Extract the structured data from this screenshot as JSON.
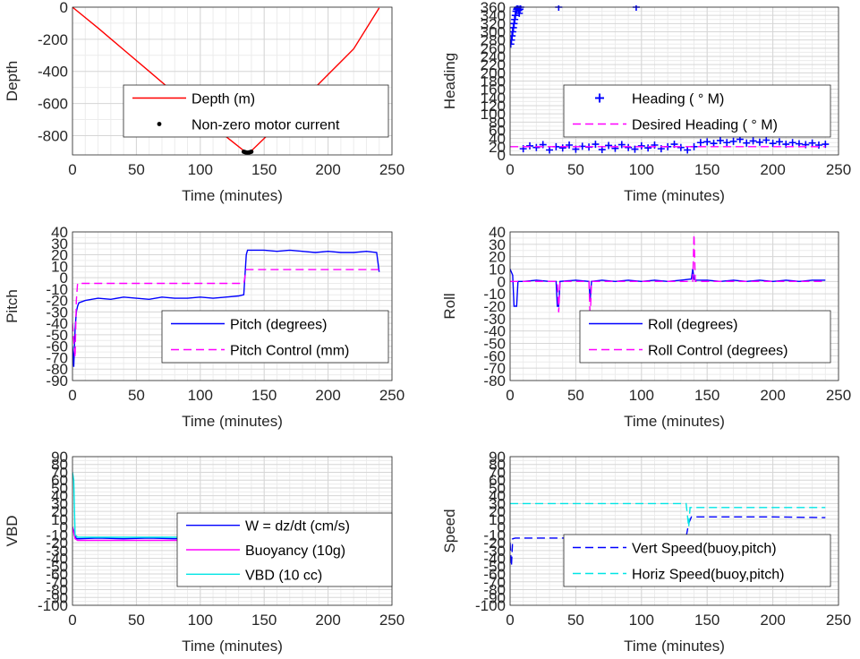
{
  "chart_data": [
    {
      "type": "line",
      "ylabel": "Depth",
      "xlabel": "Time (minutes)",
      "xlim": [
        0,
        250
      ],
      "ylim": [
        -920,
        0
      ],
      "xticks": [
        0,
        50,
        100,
        150,
        200,
        250
      ],
      "yticks": [
        0,
        -200,
        -400,
        -600,
        -800
      ],
      "grid": true,
      "legend": "center",
      "series": [
        {
          "name": "Depth (m)",
          "style": "line",
          "color": "#ff0000",
          "x": [
            0,
            20,
            40,
            60,
            80,
            100,
            120,
            135,
            138,
            140,
            160,
            180,
            200,
            220,
            240
          ],
          "y": [
            0,
            -130,
            -265,
            -400,
            -535,
            -670,
            -805,
            -900,
            -905,
            -895,
            -740,
            -580,
            -420,
            -260,
            -5
          ]
        },
        {
          "name": "Non-zero motor current",
          "style": "dot",
          "color": "#000000",
          "x": [
            134,
            135,
            136,
            137,
            138,
            139,
            140
          ],
          "y": [
            -900,
            -903,
            -905,
            -906,
            -905,
            -903,
            -900
          ]
        }
      ]
    },
    {
      "type": "line",
      "ylabel": "Heading",
      "xlabel": "Time (minutes)",
      "xlim": [
        0,
        250
      ],
      "ylim": [
        0,
        360
      ],
      "xticks": [
        0,
        50,
        100,
        150,
        200,
        250
      ],
      "yticks": [
        0,
        20,
        40,
        60,
        80,
        100,
        120,
        140,
        160,
        180,
        200,
        220,
        240,
        260,
        280,
        300,
        320,
        340,
        360
      ],
      "grid": true,
      "legend": "center-right",
      "series": [
        {
          "name": "Heading ( ° M)",
          "style": "plus",
          "color": "#0000ff",
          "x": [
            0.5,
            1,
            1.5,
            2,
            2.5,
            3,
            3.5,
            4,
            4.5,
            5,
            5.5,
            6,
            6.5,
            7,
            7.5,
            8,
            37,
            96,
            10,
            15,
            20,
            25,
            30,
            35,
            40,
            45,
            50,
            55,
            60,
            65,
            70,
            75,
            80,
            85,
            90,
            95,
            100,
            105,
            110,
            115,
            120,
            125,
            130,
            135,
            140,
            145,
            150,
            155,
            160,
            165,
            170,
            175,
            180,
            185,
            190,
            195,
            200,
            205,
            210,
            215,
            220,
            225,
            230,
            235,
            240
          ],
          "y": [
            270,
            280,
            290,
            300,
            310,
            320,
            330,
            340,
            350,
            355,
            358,
            360,
            352,
            345,
            355,
            360,
            360,
            360,
            15,
            22,
            18,
            25,
            12,
            20,
            17,
            24,
            14,
            21,
            19,
            26,
            13,
            23,
            16,
            25,
            18,
            14,
            22,
            17,
            24,
            15,
            20,
            26,
            18,
            12,
            20,
            30,
            32,
            28,
            35,
            30,
            33,
            38,
            29,
            34,
            31,
            36,
            28,
            32,
            26,
            30,
            27,
            25,
            29,
            24,
            26
          ]
        },
        {
          "name": "Desired Heading (  ° M)",
          "style": "dash",
          "color": "#ff00ff",
          "x": [
            0,
            240
          ],
          "y": [
            20,
            20
          ]
        }
      ]
    },
    {
      "type": "line",
      "ylabel": "Pitch",
      "xlabel": "Time (minutes)",
      "xlim": [
        0,
        250
      ],
      "ylim": [
        -90,
        40
      ],
      "xticks": [
        0,
        50,
        100,
        150,
        200,
        250
      ],
      "yticks": [
        40,
        30,
        20,
        10,
        0,
        -10,
        -20,
        -30,
        -40,
        -50,
        -60,
        -70,
        -80,
        -90
      ],
      "grid": true,
      "legend": "lower-center",
      "series": [
        {
          "name": "Pitch (degrees)",
          "style": "line",
          "color": "#0000ff",
          "x": [
            0,
            1,
            2,
            3,
            4,
            5,
            10,
            20,
            30,
            40,
            50,
            60,
            70,
            80,
            90,
            100,
            110,
            120,
            130,
            134,
            136,
            137,
            140,
            150,
            160,
            170,
            180,
            190,
            200,
            210,
            220,
            230,
            238,
            240
          ],
          "y": [
            -60,
            -78,
            -45,
            -30,
            -25,
            -22,
            -20,
            -18,
            -19,
            -17,
            -18,
            -19,
            -17,
            -18,
            -18,
            -17,
            -18,
            -17,
            -16,
            -15,
            20,
            24,
            24,
            24,
            23,
            24,
            23,
            22,
            23,
            22,
            22,
            23,
            22,
            5
          ]
        },
        {
          "name": "Pitch Control (mm)",
          "style": "dash",
          "color": "#ff00ff",
          "x": [
            0,
            2,
            3,
            4,
            134,
            136,
            240
          ],
          "y": [
            -40,
            -70,
            -20,
            -5,
            -5,
            7,
            7
          ]
        }
      ]
    },
    {
      "type": "line",
      "ylabel": "Roll",
      "xlabel": "Time (minutes)",
      "xlim": [
        0,
        250
      ],
      "ylim": [
        -80,
        40
      ],
      "xticks": [
        0,
        50,
        100,
        150,
        200,
        250
      ],
      "yticks": [
        40,
        30,
        20,
        10,
        0,
        -10,
        -20,
        -30,
        -40,
        -50,
        -60,
        -70,
        -80
      ],
      "grid": true,
      "legend": "lower-right",
      "series": [
        {
          "name": "Roll (degrees)",
          "style": "line",
          "color": "#0000ff",
          "x": [
            0,
            2,
            3,
            5,
            6,
            10,
            20,
            30,
            35,
            36,
            37,
            38,
            50,
            60,
            61,
            62,
            70,
            80,
            90,
            100,
            110,
            120,
            130,
            138,
            139,
            140,
            141,
            142,
            150,
            160,
            170,
            180,
            190,
            200,
            210,
            220,
            230,
            240
          ],
          "y": [
            10,
            5,
            -20,
            -20,
            0,
            0,
            1,
            0,
            0,
            -20,
            -20,
            0,
            1,
            0,
            -15,
            0,
            1,
            0,
            1,
            0,
            1,
            0,
            1,
            2,
            10,
            2,
            1,
            1,
            1,
            0,
            1,
            0,
            1,
            0,
            1,
            0,
            1,
            1
          ]
        },
        {
          "name": "Roll Control (degrees)",
          "style": "dash",
          "color": "#ff00ff",
          "x": [
            0,
            5,
            10,
            20,
            36,
            37,
            38,
            50,
            60,
            61,
            62,
            70,
            80,
            100,
            120,
            139,
            140,
            141,
            160,
            180,
            200,
            220,
            240
          ],
          "y": [
            0,
            0,
            0,
            0,
            0,
            -25,
            0,
            0,
            0,
            -30,
            0,
            0,
            0,
            0,
            0,
            0,
            38,
            0,
            0,
            0,
            0,
            0,
            0
          ]
        }
      ]
    },
    {
      "type": "line",
      "ylabel": "VBD",
      "xlabel": "Time (minutes)",
      "xlim": [
        0,
        250
      ],
      "ylim": [
        -100,
        90
      ],
      "xticks": [
        0,
        50,
        100,
        150,
        200,
        250
      ],
      "yticks": [
        90,
        80,
        70,
        60,
        50,
        40,
        30,
        20,
        10,
        0,
        -10,
        -20,
        -30,
        -40,
        -50,
        -60,
        -70,
        -80,
        -90,
        -100
      ],
      "grid": true,
      "legend": "lower-center",
      "series": [
        {
          "name": "W = dz/dt (cm/s)",
          "style": "line",
          "color": "#0000ff",
          "x": [
            0,
            2,
            3,
            5,
            20,
            40,
            60,
            80,
            100,
            120,
            134,
            136,
            140,
            160,
            180,
            200,
            220,
            240
          ],
          "y": [
            0,
            -10,
            -15,
            -15,
            -14,
            -15,
            -14,
            -15,
            -14,
            -15,
            -14,
            5,
            14,
            14,
            13,
            14,
            13,
            13
          ]
        },
        {
          "name": "Buoyancy (10g)",
          "style": "line",
          "color": "#ff00ff",
          "x": [
            0,
            2,
            4,
            134,
            136,
            240
          ],
          "y": [
            0,
            -15,
            -17,
            -17,
            13,
            13
          ]
        },
        {
          "name": "VBD (10 cc)",
          "style": "line",
          "color": "#00e5e5",
          "x": [
            0,
            1,
            2,
            4,
            134,
            135,
            137,
            240
          ],
          "y": [
            70,
            60,
            -10,
            -13,
            -13,
            0,
            12,
            12
          ]
        }
      ]
    },
    {
      "type": "line",
      "ylabel": "Speed",
      "xlabel": "Time (minutes)",
      "xlim": [
        0,
        250
      ],
      "ylim": [
        -100,
        90
      ],
      "xticks": [
        0,
        50,
        100,
        150,
        200,
        250
      ],
      "yticks": [
        90,
        80,
        70,
        60,
        50,
        40,
        30,
        20,
        10,
        0,
        -10,
        -20,
        -30,
        -40,
        -50,
        -60,
        -70,
        -80,
        -90,
        -100
      ],
      "grid": true,
      "legend": "lower-right",
      "series": [
        {
          "name": "Vert Speed(buoy,pitch)",
          "style": "dash",
          "color": "#0000ff",
          "x": [
            0,
            1,
            2,
            4,
            20,
            60,
            100,
            134,
            136,
            138,
            150,
            200,
            240
          ],
          "y": [
            -20,
            -50,
            -15,
            -14,
            -14,
            -14,
            -13,
            -13,
            5,
            13,
            13,
            13,
            12
          ]
        },
        {
          "name": "Horiz Speed(buoy,pitch)",
          "style": "dash",
          "color": "#00e5e5",
          "x": [
            0,
            2,
            4,
            100,
            134,
            136,
            137,
            140,
            240
          ],
          "y": [
            30,
            30,
            30,
            30,
            30,
            0,
            25,
            25,
            25
          ]
        }
      ]
    }
  ]
}
